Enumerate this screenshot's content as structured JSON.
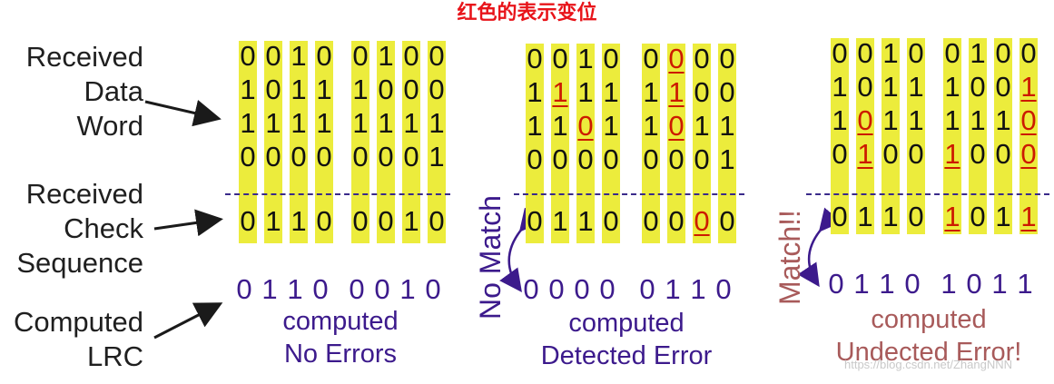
{
  "heading": "红色的表示变位",
  "left_labels": {
    "received_data_word": [
      "Received",
      "Data",
      "Word"
    ],
    "received_check_sequence": [
      "Received",
      "Check",
      "Sequence"
    ],
    "computed_lrc": [
      "Computed",
      "LRC"
    ]
  },
  "panels": [
    {
      "data_rows": [
        [
          "0",
          "0",
          "1",
          "0",
          "0",
          "1",
          "0",
          "0"
        ],
        [
          "1",
          "0",
          "1",
          "1",
          "1",
          "0",
          "0",
          "0"
        ],
        [
          "1",
          "1",
          "1",
          "1",
          "1",
          "1",
          "1",
          "1"
        ],
        [
          "0",
          "0",
          "0",
          "0",
          "0",
          "0",
          "0",
          "1"
        ]
      ],
      "flipped_data": [],
      "check_row": [
        "0",
        "1",
        "1",
        "0",
        "0",
        "0",
        "1",
        "0"
      ],
      "flipped_check": [],
      "computed_row": [
        "0",
        "1",
        "1",
        "0",
        "0",
        "0",
        "1",
        "0"
      ],
      "caption": [
        "computed",
        "No Errors"
      ],
      "side_label": ""
    },
    {
      "data_rows": [
        [
          "0",
          "0",
          "1",
          "0",
          "0",
          "0",
          "0",
          "0"
        ],
        [
          "1",
          "1",
          "1",
          "1",
          "1",
          "1",
          "0",
          "0"
        ],
        [
          "1",
          "1",
          "0",
          "1",
          "1",
          "0",
          "1",
          "1"
        ],
        [
          "0",
          "0",
          "0",
          "0",
          "0",
          "0",
          "0",
          "1"
        ]
      ],
      "flipped_data": [
        [
          0,
          5
        ],
        [
          1,
          1
        ],
        [
          1,
          5
        ],
        [
          2,
          2
        ],
        [
          2,
          5
        ]
      ],
      "check_row": [
        "0",
        "1",
        "1",
        "0",
        "0",
        "0",
        "0",
        "0"
      ],
      "flipped_check": [
        6
      ],
      "computed_row": [
        "0",
        "0",
        "0",
        "0",
        "0",
        "1",
        "1",
        "0"
      ],
      "caption": [
        "computed",
        "Detected Error"
      ],
      "side_label": "No Match"
    },
    {
      "data_rows": [
        [
          "0",
          "0",
          "1",
          "0",
          "0",
          "1",
          "0",
          "0"
        ],
        [
          "1",
          "0",
          "1",
          "1",
          "1",
          "0",
          "0",
          "1"
        ],
        [
          "1",
          "0",
          "1",
          "1",
          "1",
          "1",
          "1",
          "0"
        ],
        [
          "0",
          "1",
          "0",
          "0",
          "1",
          "0",
          "0",
          "0"
        ]
      ],
      "flipped_data": [
        [
          1,
          7
        ],
        [
          2,
          1
        ],
        [
          2,
          7
        ],
        [
          3,
          1
        ],
        [
          3,
          4
        ],
        [
          3,
          7
        ]
      ],
      "check_row": [
        "0",
        "1",
        "1",
        "0",
        "1",
        "0",
        "1",
        "1"
      ],
      "flipped_check": [
        4,
        7
      ],
      "computed_row": [
        "0",
        "1",
        "1",
        "0",
        "1",
        "0",
        "1",
        "1"
      ],
      "caption": [
        "computed",
        "Undected Error!"
      ],
      "side_label": "Match!!"
    }
  ],
  "watermark": "https://blog.csdn.net/ZhangNNN",
  "colors": {
    "heading": "#e8141a",
    "highlight": "#ecec3c",
    "flip": "#cc1a00",
    "purple": "#3c1a8c",
    "maroon": "#a85a5a"
  }
}
